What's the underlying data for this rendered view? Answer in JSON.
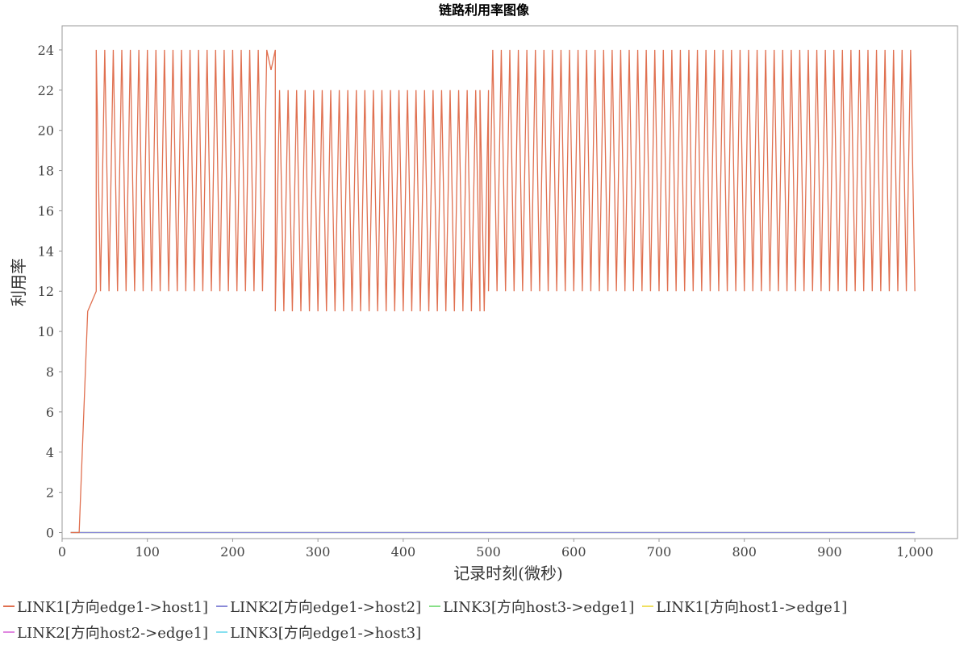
{
  "chart_data": {
    "type": "line",
    "title": "链路利用率图像",
    "xlabel": "记录时刻(微秒)",
    "ylabel": "利用率",
    "xlim": [
      0,
      1050
    ],
    "ylim": [
      -0.3,
      25.2
    ],
    "x_ticks": [
      0,
      100,
      200,
      300,
      400,
      500,
      600,
      700,
      800,
      900,
      1000
    ],
    "x_tick_labels": [
      "0",
      "100",
      "200",
      "300",
      "400",
      "500",
      "600",
      "700",
      "800",
      "900",
      "1,000"
    ],
    "y_ticks": [
      0,
      2,
      4,
      6,
      8,
      10,
      12,
      14,
      16,
      18,
      20,
      22,
      24
    ],
    "y_tick_labels": [
      "0",
      "2",
      "4",
      "6",
      "8",
      "10",
      "12",
      "14",
      "16",
      "18",
      "20",
      "22",
      "24"
    ],
    "grid": false,
    "legend_position": "bottom",
    "series": [
      {
        "name": "LINK1[方向edge1->host1]",
        "color": "#e07050",
        "prefix": [
          [
            10,
            0
          ],
          [
            20,
            0
          ],
          [
            30,
            11
          ],
          [
            40,
            12
          ]
        ],
        "segments": [
          {
            "x_start": 40,
            "x_end": 240,
            "step": 5,
            "high": 24,
            "low": 12,
            "start": "high"
          },
          {
            "x_start": 240,
            "x_end": 250,
            "step": 5,
            "high": 24,
            "low": 23,
            "start": "high"
          },
          {
            "x_start": 250,
            "x_end": 490,
            "step": 5,
            "high": 22,
            "low": 11,
            "start": "low"
          },
          {
            "x_start": 490,
            "x_end": 500,
            "step": 5,
            "high": 22,
            "low": 11,
            "start": "high"
          },
          {
            "x_start": 500,
            "x_end": 1000,
            "step": 5,
            "high": 24,
            "low": 12,
            "start": "low"
          }
        ]
      },
      {
        "name": "LINK2[方向edge1->host2]",
        "color": "#8a8ad8",
        "points": [
          [
            10,
            0
          ],
          [
            1000,
            0
          ]
        ]
      },
      {
        "name": "LINK3[方向host3->edge1]",
        "color": "#88e088",
        "points": [
          [
            10,
            0
          ],
          [
            1000,
            0
          ]
        ]
      },
      {
        "name": "LINK1[方向host1->edge1]",
        "color": "#f0e060",
        "points": [
          [
            10,
            0
          ],
          [
            1000,
            0
          ]
        ]
      },
      {
        "name": "LINK2[方向host2->edge1]",
        "color": "#e088e0",
        "points": [
          [
            10,
            0
          ],
          [
            1000,
            0
          ]
        ]
      },
      {
        "name": "LINK3[方向edge1->host3]",
        "color": "#88e0f0",
        "points": [
          [
            10,
            0
          ],
          [
            1000,
            0
          ]
        ]
      }
    ]
  }
}
